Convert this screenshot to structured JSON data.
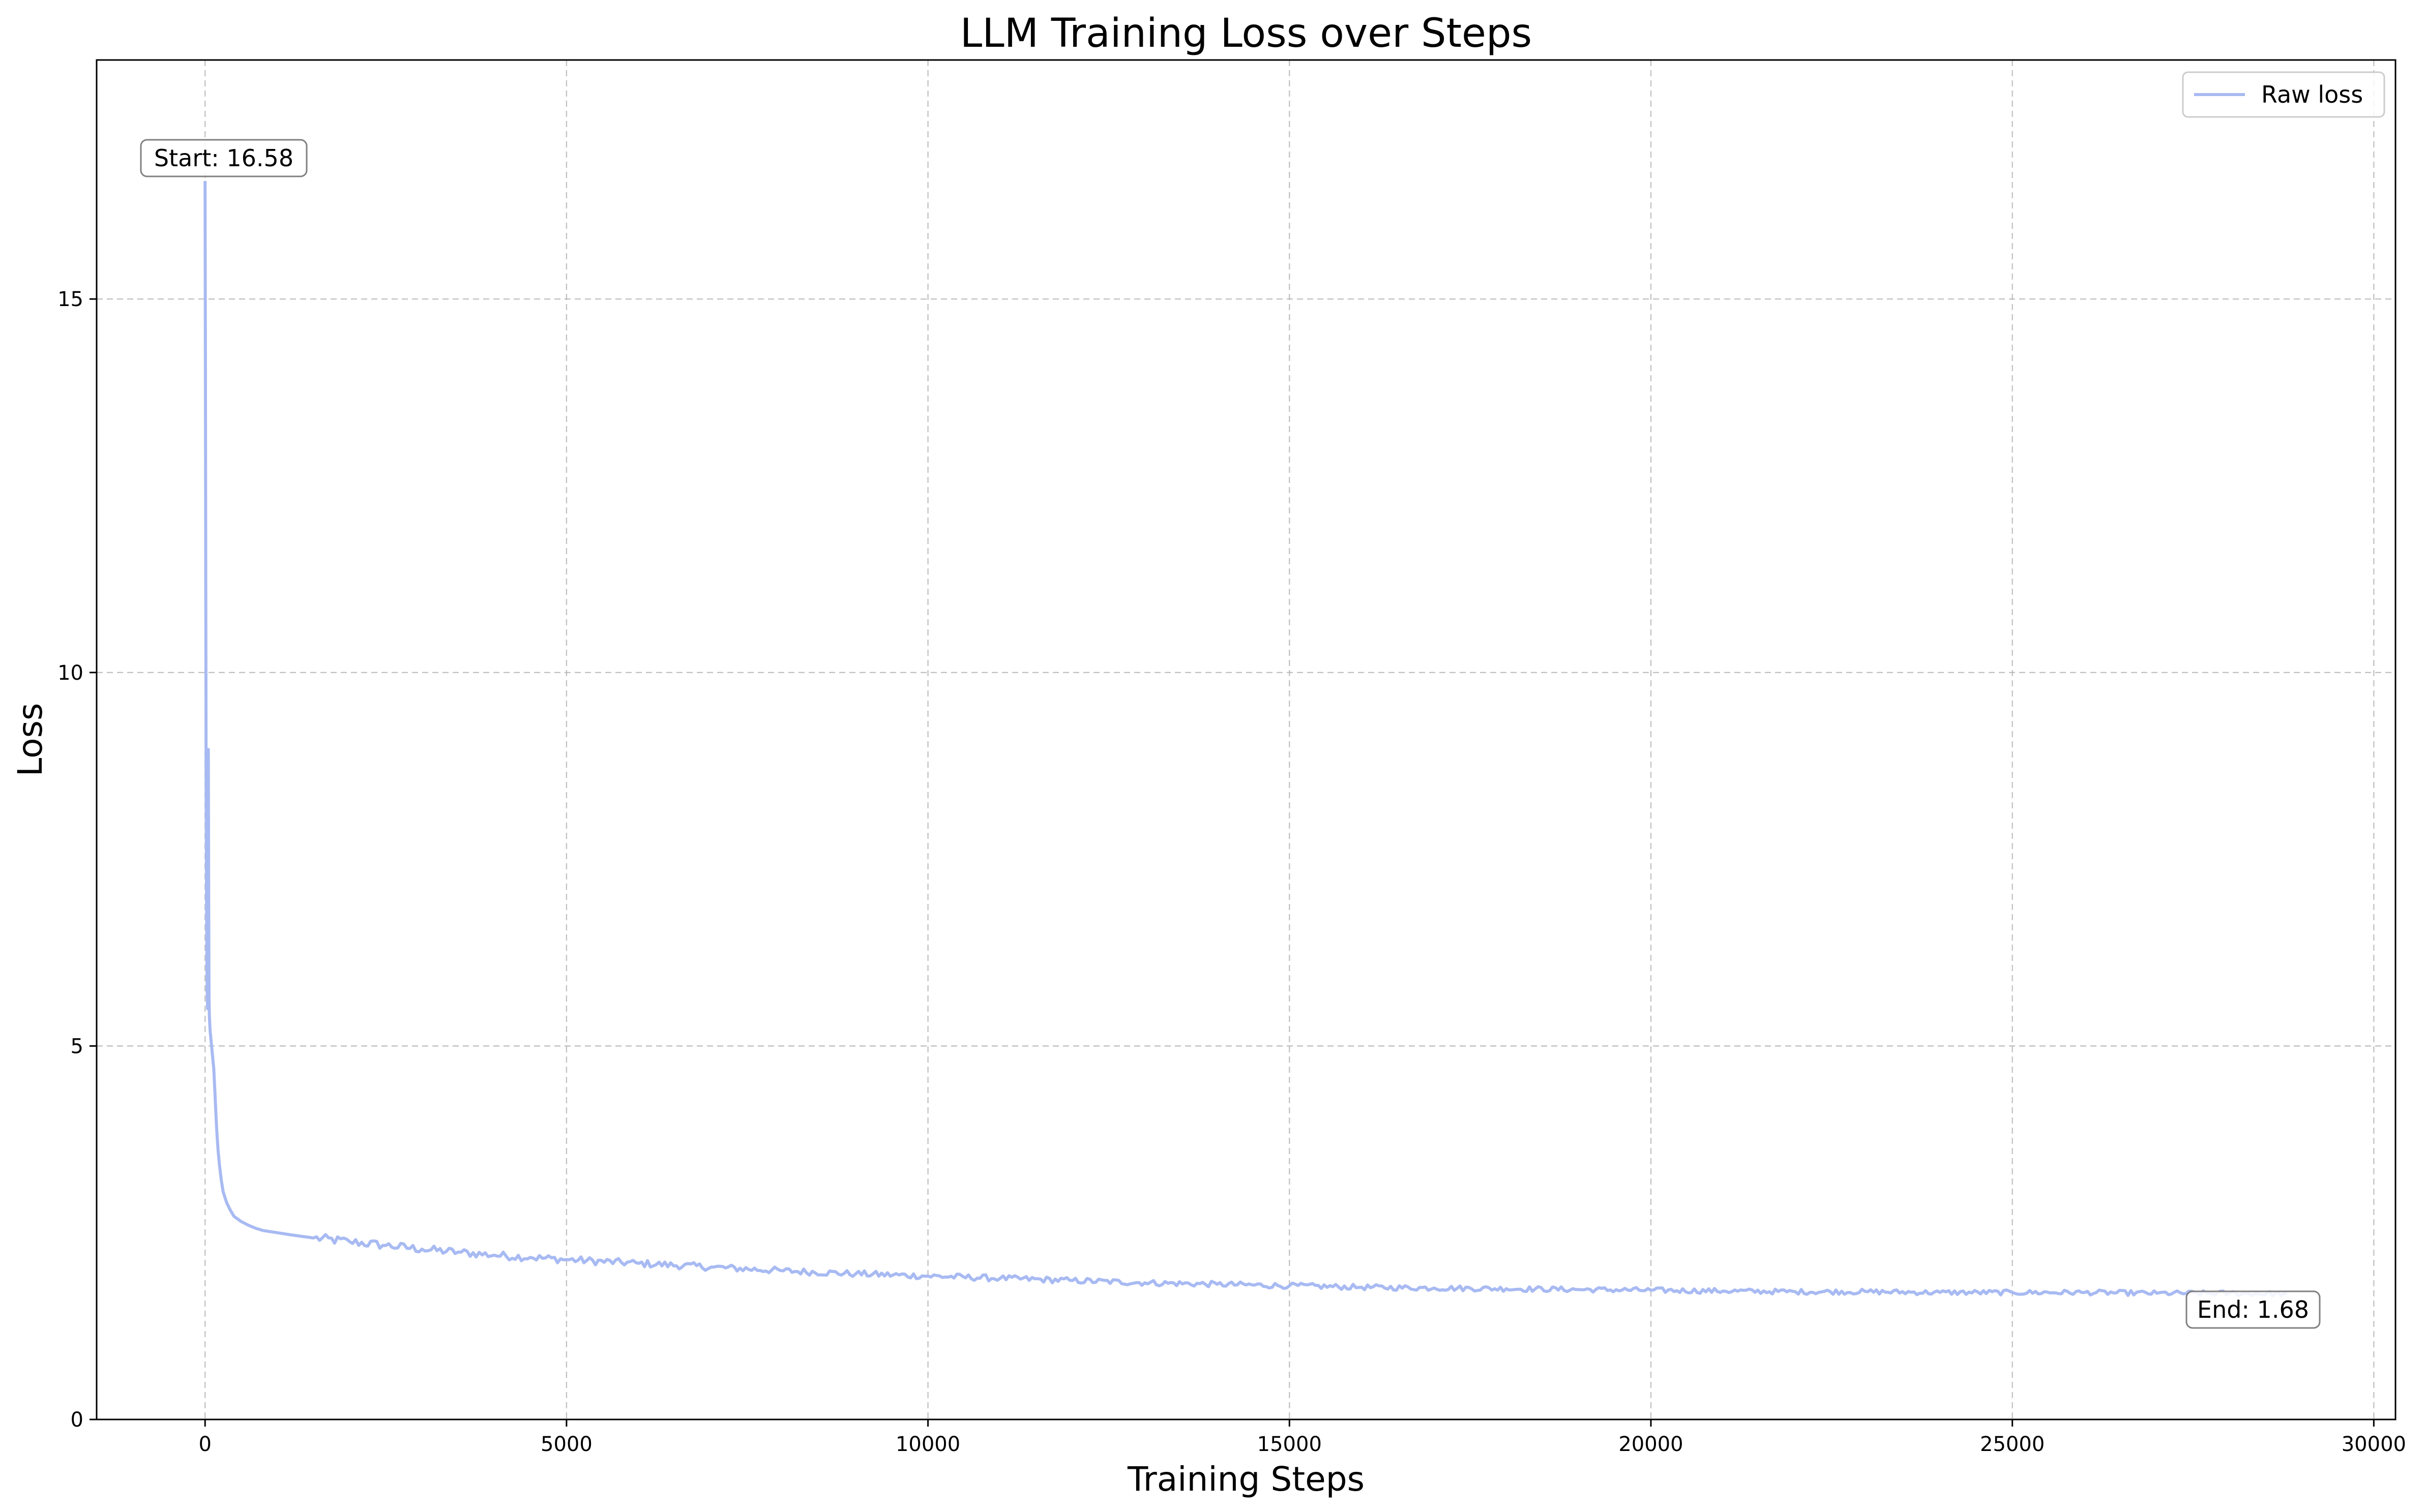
{
  "chart_data": {
    "type": "line",
    "title": "LLM Training Loss over Steps",
    "xlabel": "Training Steps",
    "ylabel": "Loss",
    "xlim": [
      -1500,
      30300
    ],
    "ylim": [
      0,
      18.2
    ],
    "xticks": [
      0,
      5000,
      10000,
      15000,
      20000,
      25000,
      30000
    ],
    "yticks": [
      0,
      5,
      10,
      15
    ],
    "grid": true,
    "legend_position": "top-right",
    "series": [
      {
        "name": "Raw loss",
        "color": "#a8baf2",
        "x": [
          0,
          5,
          10,
          15,
          20,
          25,
          30,
          35,
          40,
          45,
          50,
          55,
          60,
          65,
          70,
          80,
          90,
          100,
          110,
          120,
          140,
          160,
          180,
          200,
          225,
          250,
          300,
          350,
          400,
          500,
          600,
          700,
          800,
          1000,
          1200,
          1500,
          2000,
          2500,
          3000,
          3500,
          4000,
          4500,
          5000,
          6000,
          7000,
          8000,
          9000,
          10000,
          11000,
          12000,
          13000,
          14000,
          15000,
          16000,
          17000,
          18000,
          19000,
          20000,
          21000,
          22000,
          23000,
          24000,
          25000,
          26000,
          27000,
          28000,
          28800
        ],
        "y": [
          16.58,
          14.0,
          11.0,
          8.5,
          7.0,
          6.2,
          5.7,
          5.5,
          6.5,
          8.97,
          7.0,
          5.6,
          5.4,
          5.3,
          5.2,
          5.1,
          5.0,
          4.9,
          4.8,
          4.7,
          4.3,
          3.9,
          3.6,
          3.4,
          3.2,
          3.05,
          2.9,
          2.8,
          2.72,
          2.65,
          2.6,
          2.56,
          2.53,
          2.5,
          2.47,
          2.43,
          2.38,
          2.33,
          2.28,
          2.24,
          2.2,
          2.17,
          2.14,
          2.09,
          2.04,
          1.99,
          1.95,
          1.92,
          1.89,
          1.86,
          1.83,
          1.81,
          1.79,
          1.77,
          1.76,
          1.75,
          1.74,
          1.73,
          1.72,
          1.71,
          1.71,
          1.7,
          1.7,
          1.7,
          1.69,
          1.69,
          1.68
        ]
      }
    ],
    "annotations": [
      {
        "text": "Start: 16.58",
        "x": 0,
        "y": 16.58
      },
      {
        "text": "End: 1.68",
        "x": 28800,
        "y": 1.68
      }
    ]
  }
}
